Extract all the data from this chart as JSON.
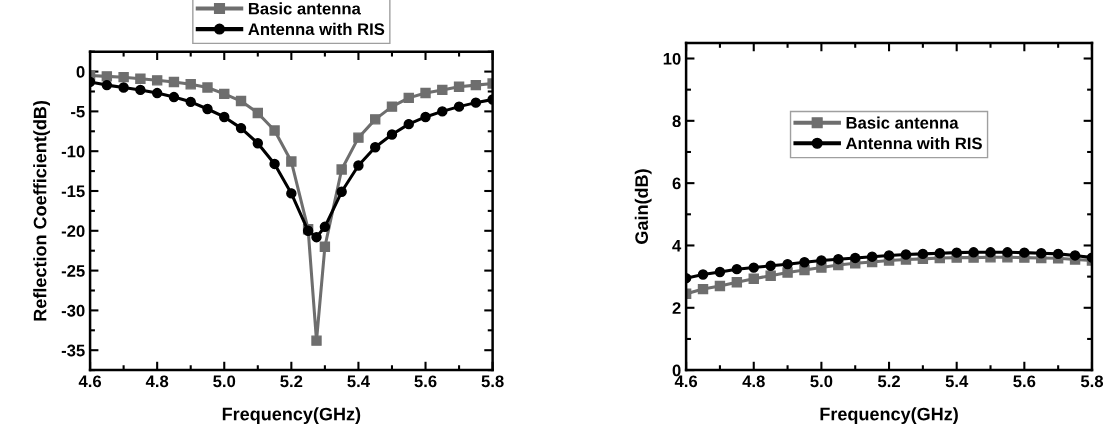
{
  "chart_data": [
    {
      "type": "line",
      "xlabel": "Frequency(GHz)",
      "ylabel": "Reflection Coefficient(dB)",
      "xlim": [
        4.6,
        5.8
      ],
      "xticks": [
        {
          "value": 4.6,
          "label": "4.6"
        },
        {
          "value": 4.8,
          "label": "4.8"
        },
        {
          "value": 5.0,
          "label": "5.0"
        },
        {
          "value": 5.2,
          "label": "5.2"
        },
        {
          "value": 5.4,
          "label": "5.4"
        },
        {
          "value": 5.6,
          "label": "5.6"
        },
        {
          "value": 5.8,
          "label": "5.8"
        }
      ],
      "ylim": [
        -37.5,
        2.5
      ],
      "yticks": [
        -35,
        -30,
        -25,
        -20,
        -15,
        -10,
        -5,
        0
      ],
      "grid": false,
      "legend": "top",
      "line_style": "solid",
      "series": [
        {
          "name": "Basic antenna",
          "color": "#6e6e6e",
          "marker": "square",
          "x": [
            4.6,
            4.65,
            4.7,
            4.75,
            4.8,
            4.85,
            4.9,
            4.95,
            5.0,
            5.05,
            5.1,
            5.15,
            5.2,
            5.25,
            5.275,
            5.3,
            5.35,
            5.4,
            5.45,
            5.5,
            5.55,
            5.6,
            5.65,
            5.7,
            5.75,
            5.8
          ],
          "values": [
            -0.5,
            -0.6,
            -0.7,
            -0.9,
            -1.1,
            -1.3,
            -1.6,
            -2.0,
            -2.8,
            -3.7,
            -5.2,
            -7.4,
            -11.3,
            -19.8,
            -33.8,
            -22.0,
            -12.3,
            -8.3,
            -6.0,
            -4.4,
            -3.3,
            -2.7,
            -2.3,
            -1.9,
            -1.7,
            -1.5
          ]
        },
        {
          "name": "Antenna with RIS",
          "color": "#000000",
          "marker": "circle",
          "x": [
            4.6,
            4.65,
            4.7,
            4.75,
            4.8,
            4.85,
            4.9,
            4.95,
            5.0,
            5.05,
            5.1,
            5.15,
            5.2,
            5.25,
            5.275,
            5.3,
            5.35,
            5.4,
            5.45,
            5.5,
            5.55,
            5.6,
            5.65,
            5.7,
            5.75,
            5.8
          ],
          "values": [
            -1.3,
            -1.7,
            -2.0,
            -2.3,
            -2.7,
            -3.2,
            -3.8,
            -4.7,
            -5.7,
            -7.1,
            -9.0,
            -11.6,
            -15.3,
            -20.0,
            -20.8,
            -19.5,
            -15.1,
            -11.8,
            -9.5,
            -7.9,
            -6.6,
            -5.7,
            -5.0,
            -4.4,
            -3.9,
            -3.5
          ]
        }
      ]
    },
    {
      "type": "line",
      "xlabel": "Frequency(GHz)",
      "ylabel": "Gain(dB)",
      "xlim": [
        4.6,
        5.8
      ],
      "xticks": [
        {
          "value": 4.6,
          "label": "4.6"
        },
        {
          "value": 4.8,
          "label": "4.8"
        },
        {
          "value": 5.0,
          "label": "5.0"
        },
        {
          "value": 5.2,
          "label": "5.2"
        },
        {
          "value": 5.4,
          "label": "5.4"
        },
        {
          "value": 5.6,
          "label": "5.6"
        },
        {
          "value": 5.8,
          "label": "5.8"
        }
      ],
      "ylim": [
        0,
        10.5
      ],
      "yticks": [
        0,
        2,
        4,
        6,
        8,
        10
      ],
      "grid": false,
      "legend": "center",
      "line_style": "solid",
      "series": [
        {
          "name": "Basic antenna",
          "color": "#6e6e6e",
          "marker": "square",
          "x": [
            4.6,
            4.65,
            4.7,
            4.75,
            4.8,
            4.85,
            4.9,
            4.95,
            5.0,
            5.05,
            5.1,
            5.15,
            5.2,
            5.25,
            5.3,
            5.35,
            5.4,
            5.45,
            5.5,
            5.55,
            5.6,
            5.65,
            5.7,
            5.75,
            5.8
          ],
          "values": [
            2.45,
            2.6,
            2.7,
            2.82,
            2.93,
            3.03,
            3.13,
            3.21,
            3.29,
            3.37,
            3.43,
            3.47,
            3.52,
            3.55,
            3.57,
            3.6,
            3.61,
            3.61,
            3.62,
            3.62,
            3.61,
            3.6,
            3.59,
            3.55,
            3.52
          ]
        },
        {
          "name": "Antenna with RIS",
          "color": "#000000",
          "marker": "circle",
          "x": [
            4.6,
            4.65,
            4.7,
            4.75,
            4.8,
            4.85,
            4.9,
            4.95,
            5.0,
            5.05,
            5.1,
            5.15,
            5.2,
            5.25,
            5.3,
            5.35,
            5.4,
            5.45,
            5.5,
            5.55,
            5.6,
            5.65,
            5.7,
            5.75,
            5.8
          ],
          "values": [
            2.95,
            3.07,
            3.15,
            3.24,
            3.29,
            3.35,
            3.4,
            3.46,
            3.52,
            3.56,
            3.6,
            3.64,
            3.68,
            3.71,
            3.73,
            3.75,
            3.77,
            3.78,
            3.78,
            3.78,
            3.77,
            3.75,
            3.73,
            3.68,
            3.61
          ]
        }
      ]
    }
  ]
}
